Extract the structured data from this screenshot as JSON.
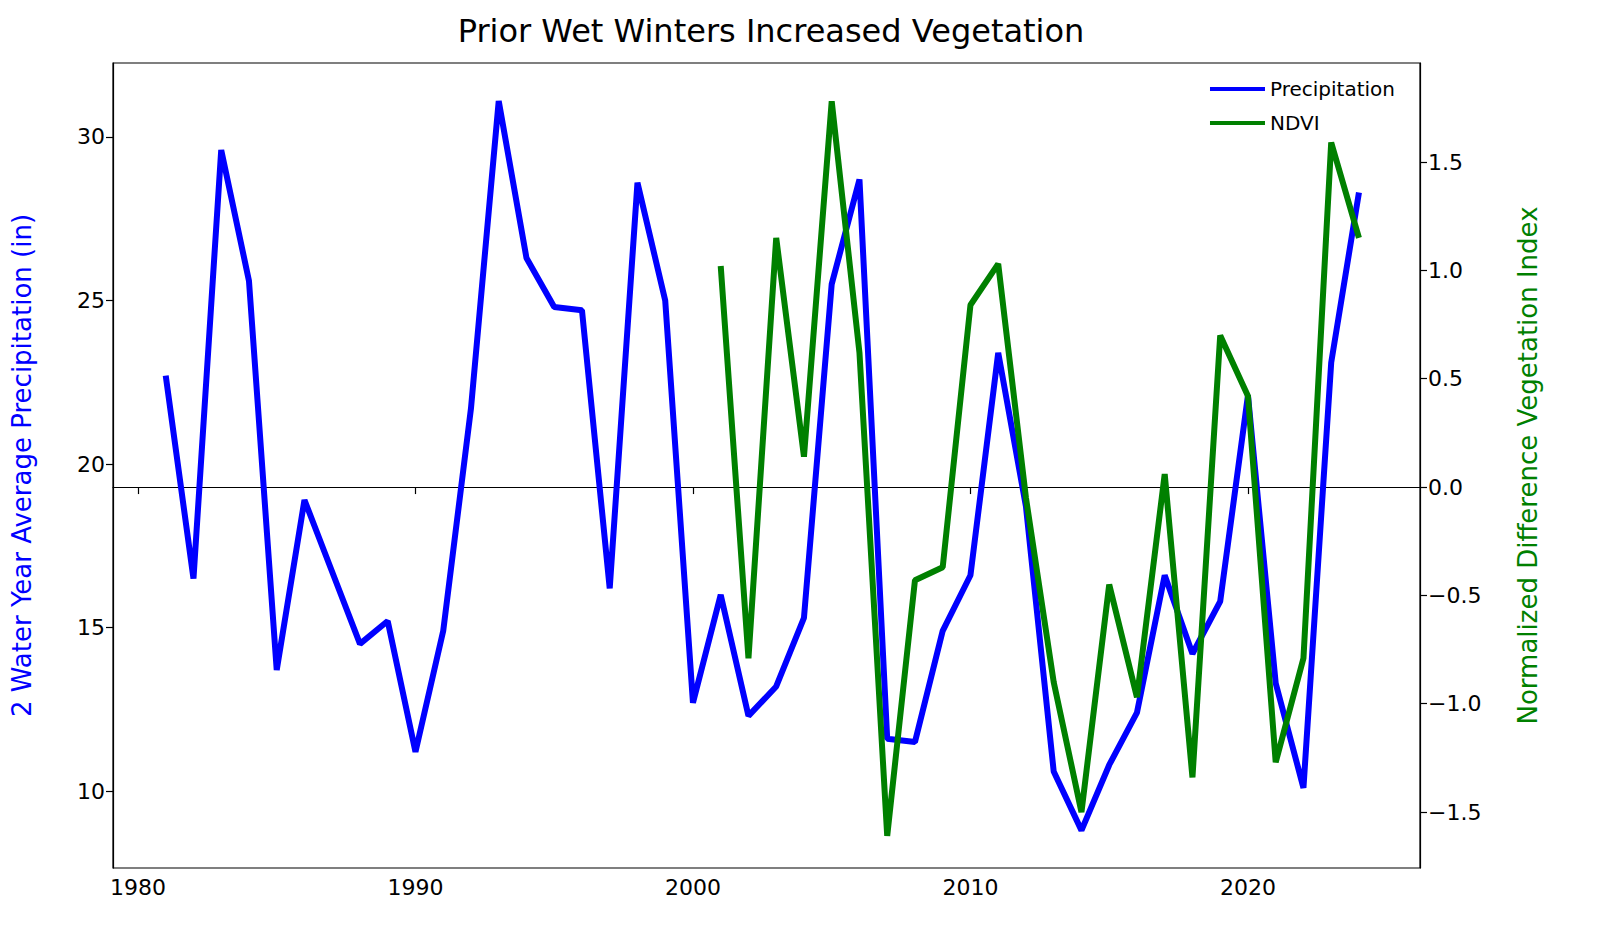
{
  "chart_data": {
    "type": "line",
    "title": "Prior Wet Winters Increased Vegetation",
    "y_label": "2 Water Year Average Precipitation (in)",
    "y2_label": "Normalized Difference Vegetation Index",
    "xlim": [
      1979.1,
      2026.2
    ],
    "xticks": [
      1980,
      1990,
      2000,
      2010,
      2020
    ],
    "ylim": [
      7.65,
      32.26
    ],
    "yticks": [
      10,
      15,
      20,
      25,
      30
    ],
    "y2lim": [
      -1.758,
      1.957
    ],
    "y2ticks": [
      {
        "value": -1.5,
        "label": "−1.5"
      },
      {
        "value": -1.0,
        "label": "−1.0"
      },
      {
        "value": -0.5,
        "label": "−0.5"
      },
      {
        "value": 0.0,
        "label": "0.0"
      },
      {
        "value": 0.5,
        "label": "0.5"
      },
      {
        "value": 1.0,
        "label": "1.0"
      },
      {
        "value": 1.5,
        "label": "1.5"
      }
    ],
    "grid": false,
    "legend": "upper right",
    "series": [
      {
        "name": "Precipitation",
        "color": "#0000ff",
        "axis": "y",
        "x": [
          1981,
          1982,
          1983,
          1984,
          1985,
          1986,
          1987,
          1988,
          1989,
          1990,
          1991,
          1992,
          1993,
          1994,
          1995,
          1996,
          1997,
          1998,
          1999,
          2000,
          2001,
          2002,
          2003,
          2004,
          2005,
          2006,
          2007,
          2008,
          2009,
          2010,
          2011,
          2012,
          2013,
          2014,
          2015,
          2016,
          2017,
          2018,
          2019,
          2020,
          2021,
          2022,
          2023,
          2024
        ],
        "values": [
          22.7,
          16.5,
          29.6,
          25.6,
          13.7,
          18.9,
          16.7,
          14.5,
          15.2,
          11.2,
          14.9,
          21.7,
          31.1,
          26.3,
          24.8,
          24.7,
          16.2,
          28.6,
          25.0,
          12.7,
          16.0,
          12.3,
          13.2,
          15.3,
          25.5,
          28.7,
          11.6,
          11.5,
          14.9,
          16.6,
          23.4,
          18.7,
          10.6,
          8.8,
          10.8,
          12.4,
          16.6,
          14.2,
          15.8,
          22.1,
          13.3,
          10.1,
          23.1,
          28.3
        ]
      },
      {
        "name": "NDVI",
        "color": "#008000",
        "axis": "y2",
        "x": [
          2001,
          2002,
          2003,
          2004,
          2005,
          2006,
          2007,
          2008,
          2009,
          2010,
          2011,
          2012,
          2013,
          2014,
          2015,
          2016,
          2017,
          2018,
          2019,
          2020,
          2021,
          2022,
          2023,
          2024
        ],
        "values": [
          1.02,
          -0.79,
          1.15,
          0.14,
          1.78,
          0.62,
          -1.61,
          -0.43,
          -0.37,
          0.84,
          1.03,
          -0.05,
          -0.9,
          -1.5,
          -0.45,
          -0.97,
          0.06,
          -1.34,
          0.7,
          0.42,
          -1.27,
          -0.79,
          1.59,
          1.15
        ]
      }
    ]
  }
}
